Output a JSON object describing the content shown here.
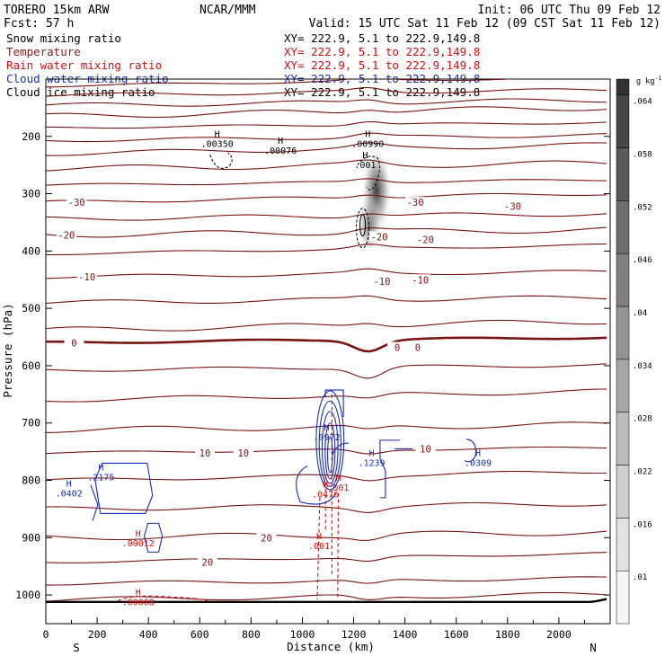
{
  "header": {
    "model": "TORERO  15km ARW",
    "org": "NCAR/MMM",
    "init": "Init: 06 UTC Thu 09 Feb 12",
    "fcst": "Fcst:    57 h",
    "valid": "Valid: 15 UTC Sat 11 Feb 12 (09 CST Sat 11 Feb 12)"
  },
  "legend": [
    {
      "name": "Snow mixing ratio",
      "xs": "XY= 222.9,  5.1 to 222.9,149.8",
      "color": "#000000"
    },
    {
      "name": "Temperature",
      "xs": "XY= 222.9,  5.1 to 222.9,149.8",
      "color": "#8b1a1a"
    },
    {
      "name": "Rain water mixing ratio",
      "xs": "XY= 222.9,  5.1 to 222.9,149.8",
      "color": "#d01010"
    },
    {
      "name": "Cloud water mixing ratio",
      "xs": "XY= 222.9,  5.1 to 222.9,149.8",
      "color": "#1a2fb0"
    },
    {
      "name": "Cloud ice mixing ratio",
      "xs": "XY= 222.9,  5.1 to 222.9,149.8",
      "color": "#000000"
    }
  ],
  "colors": {
    "temperature": "#7a1414",
    "rain": "#d01010",
    "cloud_water": "#1a2fb0",
    "cloud_ice": "#000000",
    "snow_shading": "#3a3a3a"
  },
  "chart_data": {
    "type": "cross-section contour",
    "xlabel": "Distance (km)",
    "ylabel": "Pressure (hPa)",
    "xlim": [
      0,
      2200
    ],
    "ylim": [
      1050,
      100
    ],
    "x_ticks": [
      0,
      200,
      400,
      600,
      800,
      1000,
      1200,
      1400,
      1600,
      1800,
      2000
    ],
    "y_ticks": [
      200,
      300,
      400,
      500,
      600,
      700,
      800,
      900,
      1000
    ],
    "x_end_labels": {
      "left": "S",
      "right": "N"
    },
    "colorbar": {
      "unit": "g kg",
      "unit_exp": "-1",
      "levels": [
        0.01,
        0.016,
        0.022,
        0.028,
        0.034,
        0.04,
        0.046,
        0.052,
        0.058,
        0.064
      ],
      "labels": [
        ".01",
        ".016",
        ".022",
        ".028",
        ".034",
        ".04",
        ".046",
        ".052",
        ".058",
        ".064"
      ]
    },
    "temperature_contours": [
      {
        "p": 112,
        "label": ""
      },
      {
        "p": 128,
        "label": ""
      },
      {
        "p": 146,
        "label": ""
      },
      {
        "p": 165,
        "label": ""
      },
      {
        "p": 185,
        "label": ""
      },
      {
        "p": 207,
        "label": ""
      },
      {
        "p": 230,
        "label": ""
      },
      {
        "p": 256,
        "label": ""
      },
      {
        "p": 285,
        "label": ""
      },
      {
        "p": 315,
        "label": ""
      },
      {
        "p": 344,
        "label": ""
      },
      {
        "p": 372,
        "label": ""
      },
      {
        "p": 405,
        "label": ""
      },
      {
        "p": 445,
        "label": ""
      },
      {
        "p": 490,
        "label": ""
      },
      {
        "p": 538,
        "label": ""
      },
      {
        "p": 560,
        "label": "0"
      },
      {
        "p": 608,
        "label": ""
      },
      {
        "p": 660,
        "label": ""
      },
      {
        "p": 712,
        "label": ""
      },
      {
        "p": 752,
        "label": ""
      },
      {
        "p": 800,
        "label": ""
      },
      {
        "p": 850,
        "label": ""
      },
      {
        "p": 900,
        "label": ""
      },
      {
        "p": 943,
        "label": ""
      },
      {
        "p": 980,
        "label": ""
      },
      {
        "p": 1008,
        "label": ""
      }
    ],
    "temperature_labels": [
      {
        "x": 120,
        "p": 315,
        "label": "-30"
      },
      {
        "x": 1440,
        "p": 315,
        "label": "-30"
      },
      {
        "x": 1820,
        "p": 322,
        "label": "-30"
      },
      {
        "x": 80,
        "p": 372,
        "label": "-20"
      },
      {
        "x": 1300,
        "p": 375,
        "label": "-20"
      },
      {
        "x": 1480,
        "p": 380,
        "label": "-20"
      },
      {
        "x": 160,
        "p": 445,
        "label": "-10"
      },
      {
        "x": 1310,
        "p": 453,
        "label": "-10"
      },
      {
        "x": 1460,
        "p": 450,
        "label": "-10"
      },
      {
        "x": 110,
        "p": 560,
        "label": "0"
      },
      {
        "x": 1370,
        "p": 568,
        "label": "0"
      },
      {
        "x": 1450,
        "p": 568,
        "label": "0"
      },
      {
        "x": 620,
        "p": 752,
        "label": "10"
      },
      {
        "x": 770,
        "p": 752,
        "label": "10"
      },
      {
        "x": 1480,
        "p": 745,
        "label": "10"
      },
      {
        "x": 860,
        "p": 900,
        "label": "20"
      },
      {
        "x": 630,
        "p": 943,
        "label": "20"
      }
    ],
    "field_maxima": [
      {
        "field": "snow",
        "x": 668,
        "p": 218,
        "value": ".00350"
      },
      {
        "field": "snow",
        "x": 915,
        "p": 230,
        "value": ".00076"
      },
      {
        "field": "snow",
        "x": 1255,
        "p": 218,
        "value": ".00990"
      },
      {
        "field": "snow",
        "x": 1245,
        "p": 255,
        "value": ".001"
      },
      {
        "field": "cloud_water",
        "x": 215,
        "p": 800,
        "value": ".2175"
      },
      {
        "field": "cloud_water",
        "x": 90,
        "p": 828,
        "value": ".0402"
      },
      {
        "field": "cloud_water",
        "x": 1095,
        "p": 730,
        "value": ".0972"
      },
      {
        "field": "cloud_water",
        "x": 1270,
        "p": 775,
        "value": ".1239"
      },
      {
        "field": "cloud_water",
        "x": 1685,
        "p": 775,
        "value": ".0309"
      },
      {
        "field": "rain",
        "x": 1090,
        "p": 830,
        "value": ".0476"
      },
      {
        "field": "rain",
        "x": 1140,
        "p": 818,
        "value": ".001"
      },
      {
        "field": "rain",
        "x": 1065,
        "p": 920,
        "value": ".001"
      },
      {
        "field": "rain",
        "x": 360,
        "p": 915,
        "value": ".00012"
      },
      {
        "field": "rain",
        "x": 360,
        "p": 1018,
        "value": ".00008"
      }
    ],
    "h_marker": "H"
  }
}
